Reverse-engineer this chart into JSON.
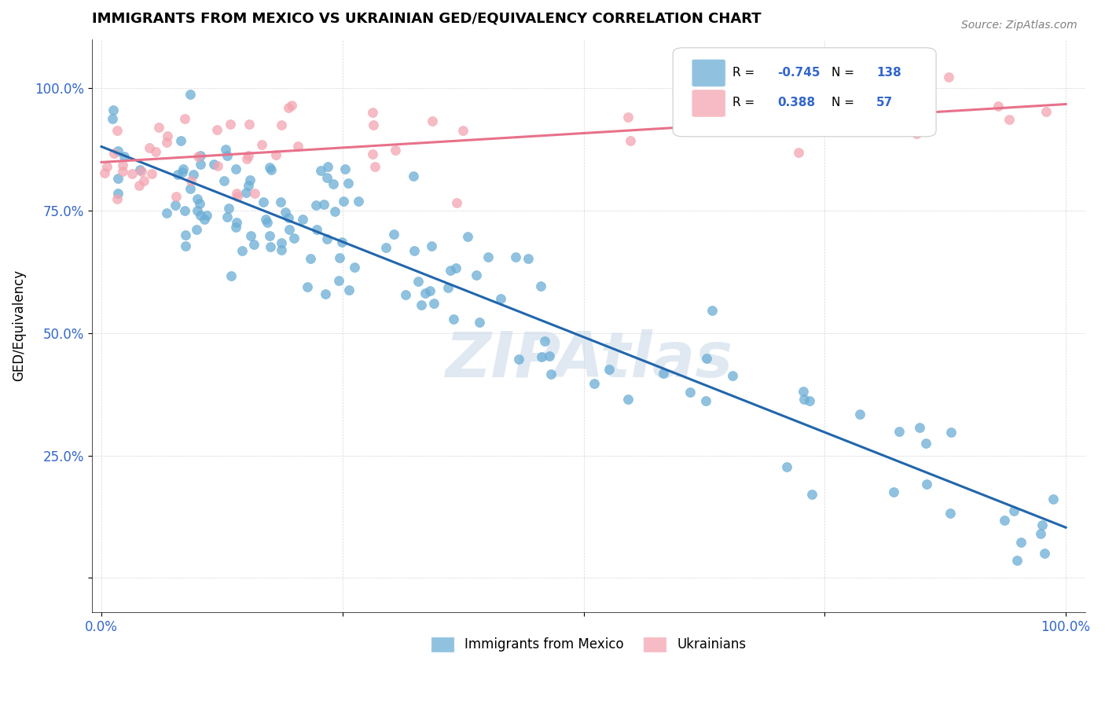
{
  "title": "IMMIGRANTS FROM MEXICO VS UKRAINIAN GED/EQUIVALENCY CORRELATION CHART",
  "source": "Source: ZipAtlas.com",
  "ylabel": "GED/Equivalency",
  "mexico_color": "#6baed6",
  "ukraine_color": "#f4a4b0",
  "mexico_line_color": "#2166ac",
  "ukraine_line_color": "#e8718a",
  "R_mexico": -0.745,
  "N_mexico": 138,
  "R_ukraine": 0.388,
  "N_ukraine": 57,
  "watermark": "ZIPAtlas",
  "legend_label_mexico": "Immigrants from Mexico",
  "legend_label_ukraine": "Ukrainians"
}
